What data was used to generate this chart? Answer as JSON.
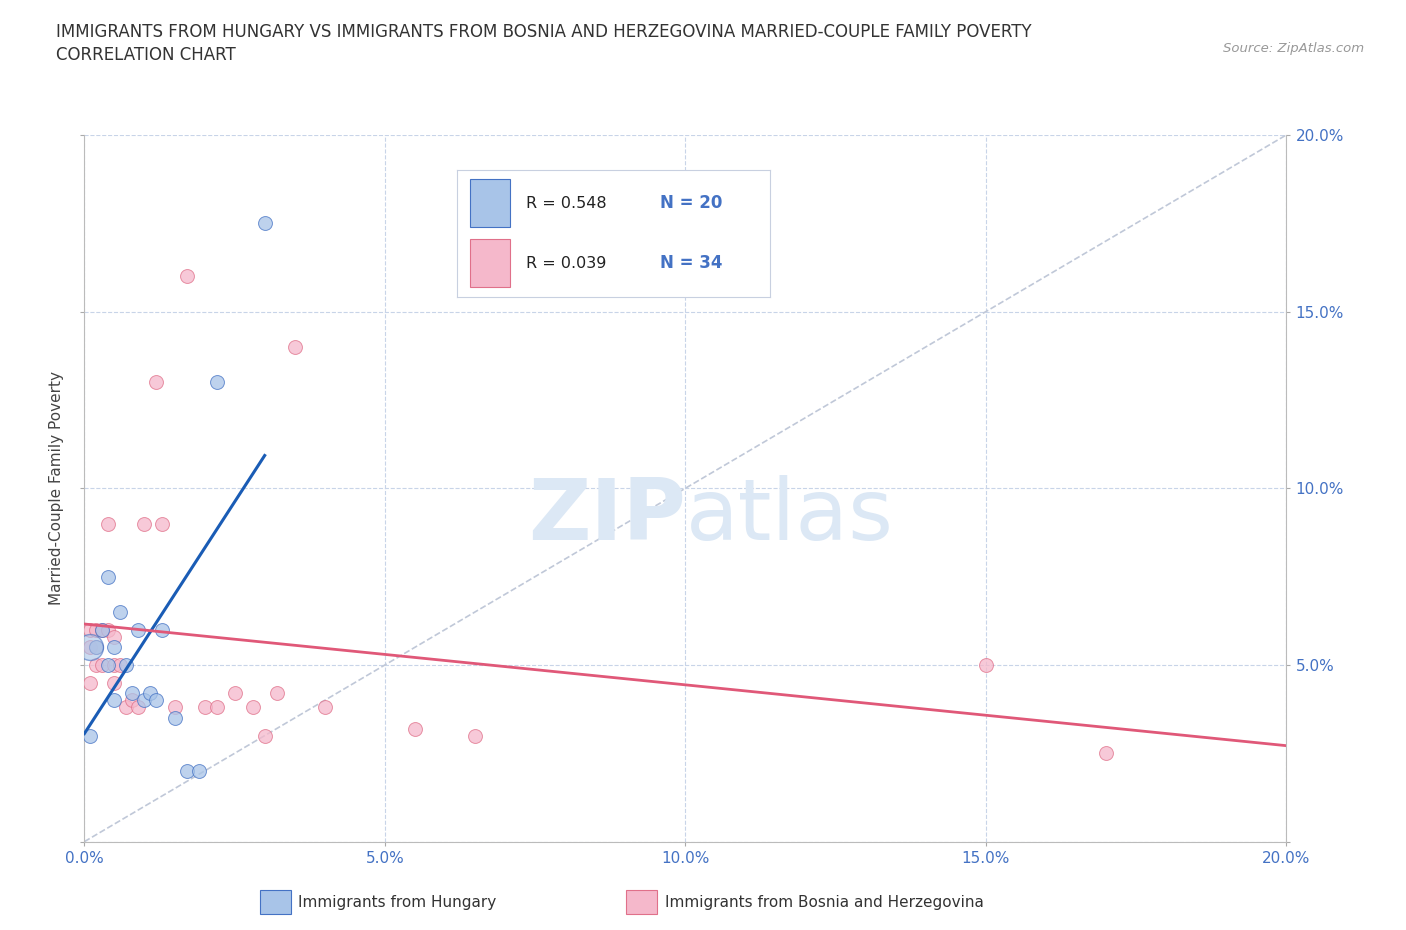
{
  "title_line1": "IMMIGRANTS FROM HUNGARY VS IMMIGRANTS FROM BOSNIA AND HERZEGOVINA MARRIED-COUPLE FAMILY POVERTY",
  "title_line2": "CORRELATION CHART",
  "source_text": "Source: ZipAtlas.com",
  "ylabel": "Married-Couple Family Poverty",
  "xlim": [
    0.0,
    0.2
  ],
  "ylim": [
    0.0,
    0.2
  ],
  "xtick_vals": [
    0.0,
    0.05,
    0.1,
    0.15,
    0.2
  ],
  "ytick_vals": [
    0.0,
    0.05,
    0.1,
    0.15,
    0.2
  ],
  "xtick_labels": [
    "0.0%",
    "5.0%",
    "10.0%",
    "15.0%",
    "20.0%"
  ],
  "right_ytick_labels": [
    "",
    "5.0%",
    "10.0%",
    "15.0%",
    "20.0%"
  ],
  "hungary_color": "#a8c4e8",
  "bosnia_color": "#f5b8cb",
  "hungary_edge_color": "#4472c4",
  "bosnia_edge_color": "#e0708a",
  "regression_line_color_hungary": "#1a5cb5",
  "regression_line_color_bosnia": "#e05878",
  "diagonal_color": "#c0c8d8",
  "legend_R_hungary": "0.548",
  "legend_N_hungary": "20",
  "legend_R_bosnia": "0.039",
  "legend_N_bosnia": "34",
  "watermark_zip": "ZIP",
  "watermark_atlas": "atlas",
  "watermark_color": "#dce8f5",
  "hungary_x": [
    0.001,
    0.002,
    0.003,
    0.004,
    0.004,
    0.005,
    0.005,
    0.006,
    0.007,
    0.008,
    0.009,
    0.01,
    0.011,
    0.012,
    0.013,
    0.015,
    0.017,
    0.019,
    0.022,
    0.03
  ],
  "hungary_y": [
    0.03,
    0.055,
    0.06,
    0.075,
    0.05,
    0.055,
    0.04,
    0.065,
    0.05,
    0.042,
    0.06,
    0.04,
    0.042,
    0.04,
    0.06,
    0.035,
    0.02,
    0.02,
    0.13,
    0.175
  ],
  "bosnia_x": [
    0.001,
    0.001,
    0.001,
    0.002,
    0.002,
    0.002,
    0.003,
    0.003,
    0.004,
    0.004,
    0.005,
    0.005,
    0.005,
    0.006,
    0.007,
    0.008,
    0.009,
    0.01,
    0.012,
    0.013,
    0.015,
    0.017,
    0.02,
    0.022,
    0.025,
    0.028,
    0.03,
    0.032,
    0.035,
    0.04,
    0.055,
    0.065,
    0.15,
    0.17
  ],
  "bosnia_y": [
    0.045,
    0.055,
    0.06,
    0.05,
    0.055,
    0.06,
    0.06,
    0.05,
    0.09,
    0.06,
    0.05,
    0.058,
    0.045,
    0.05,
    0.038,
    0.04,
    0.038,
    0.09,
    0.13,
    0.09,
    0.038,
    0.16,
    0.038,
    0.038,
    0.042,
    0.038,
    0.03,
    0.042,
    0.14,
    0.038,
    0.032,
    0.03,
    0.05,
    0.025
  ],
  "background_color": "#ffffff",
  "grid_color": "#c8d4e8",
  "dot_size": 100,
  "large_dot_size": 350,
  "dot_alpha": 0.75
}
